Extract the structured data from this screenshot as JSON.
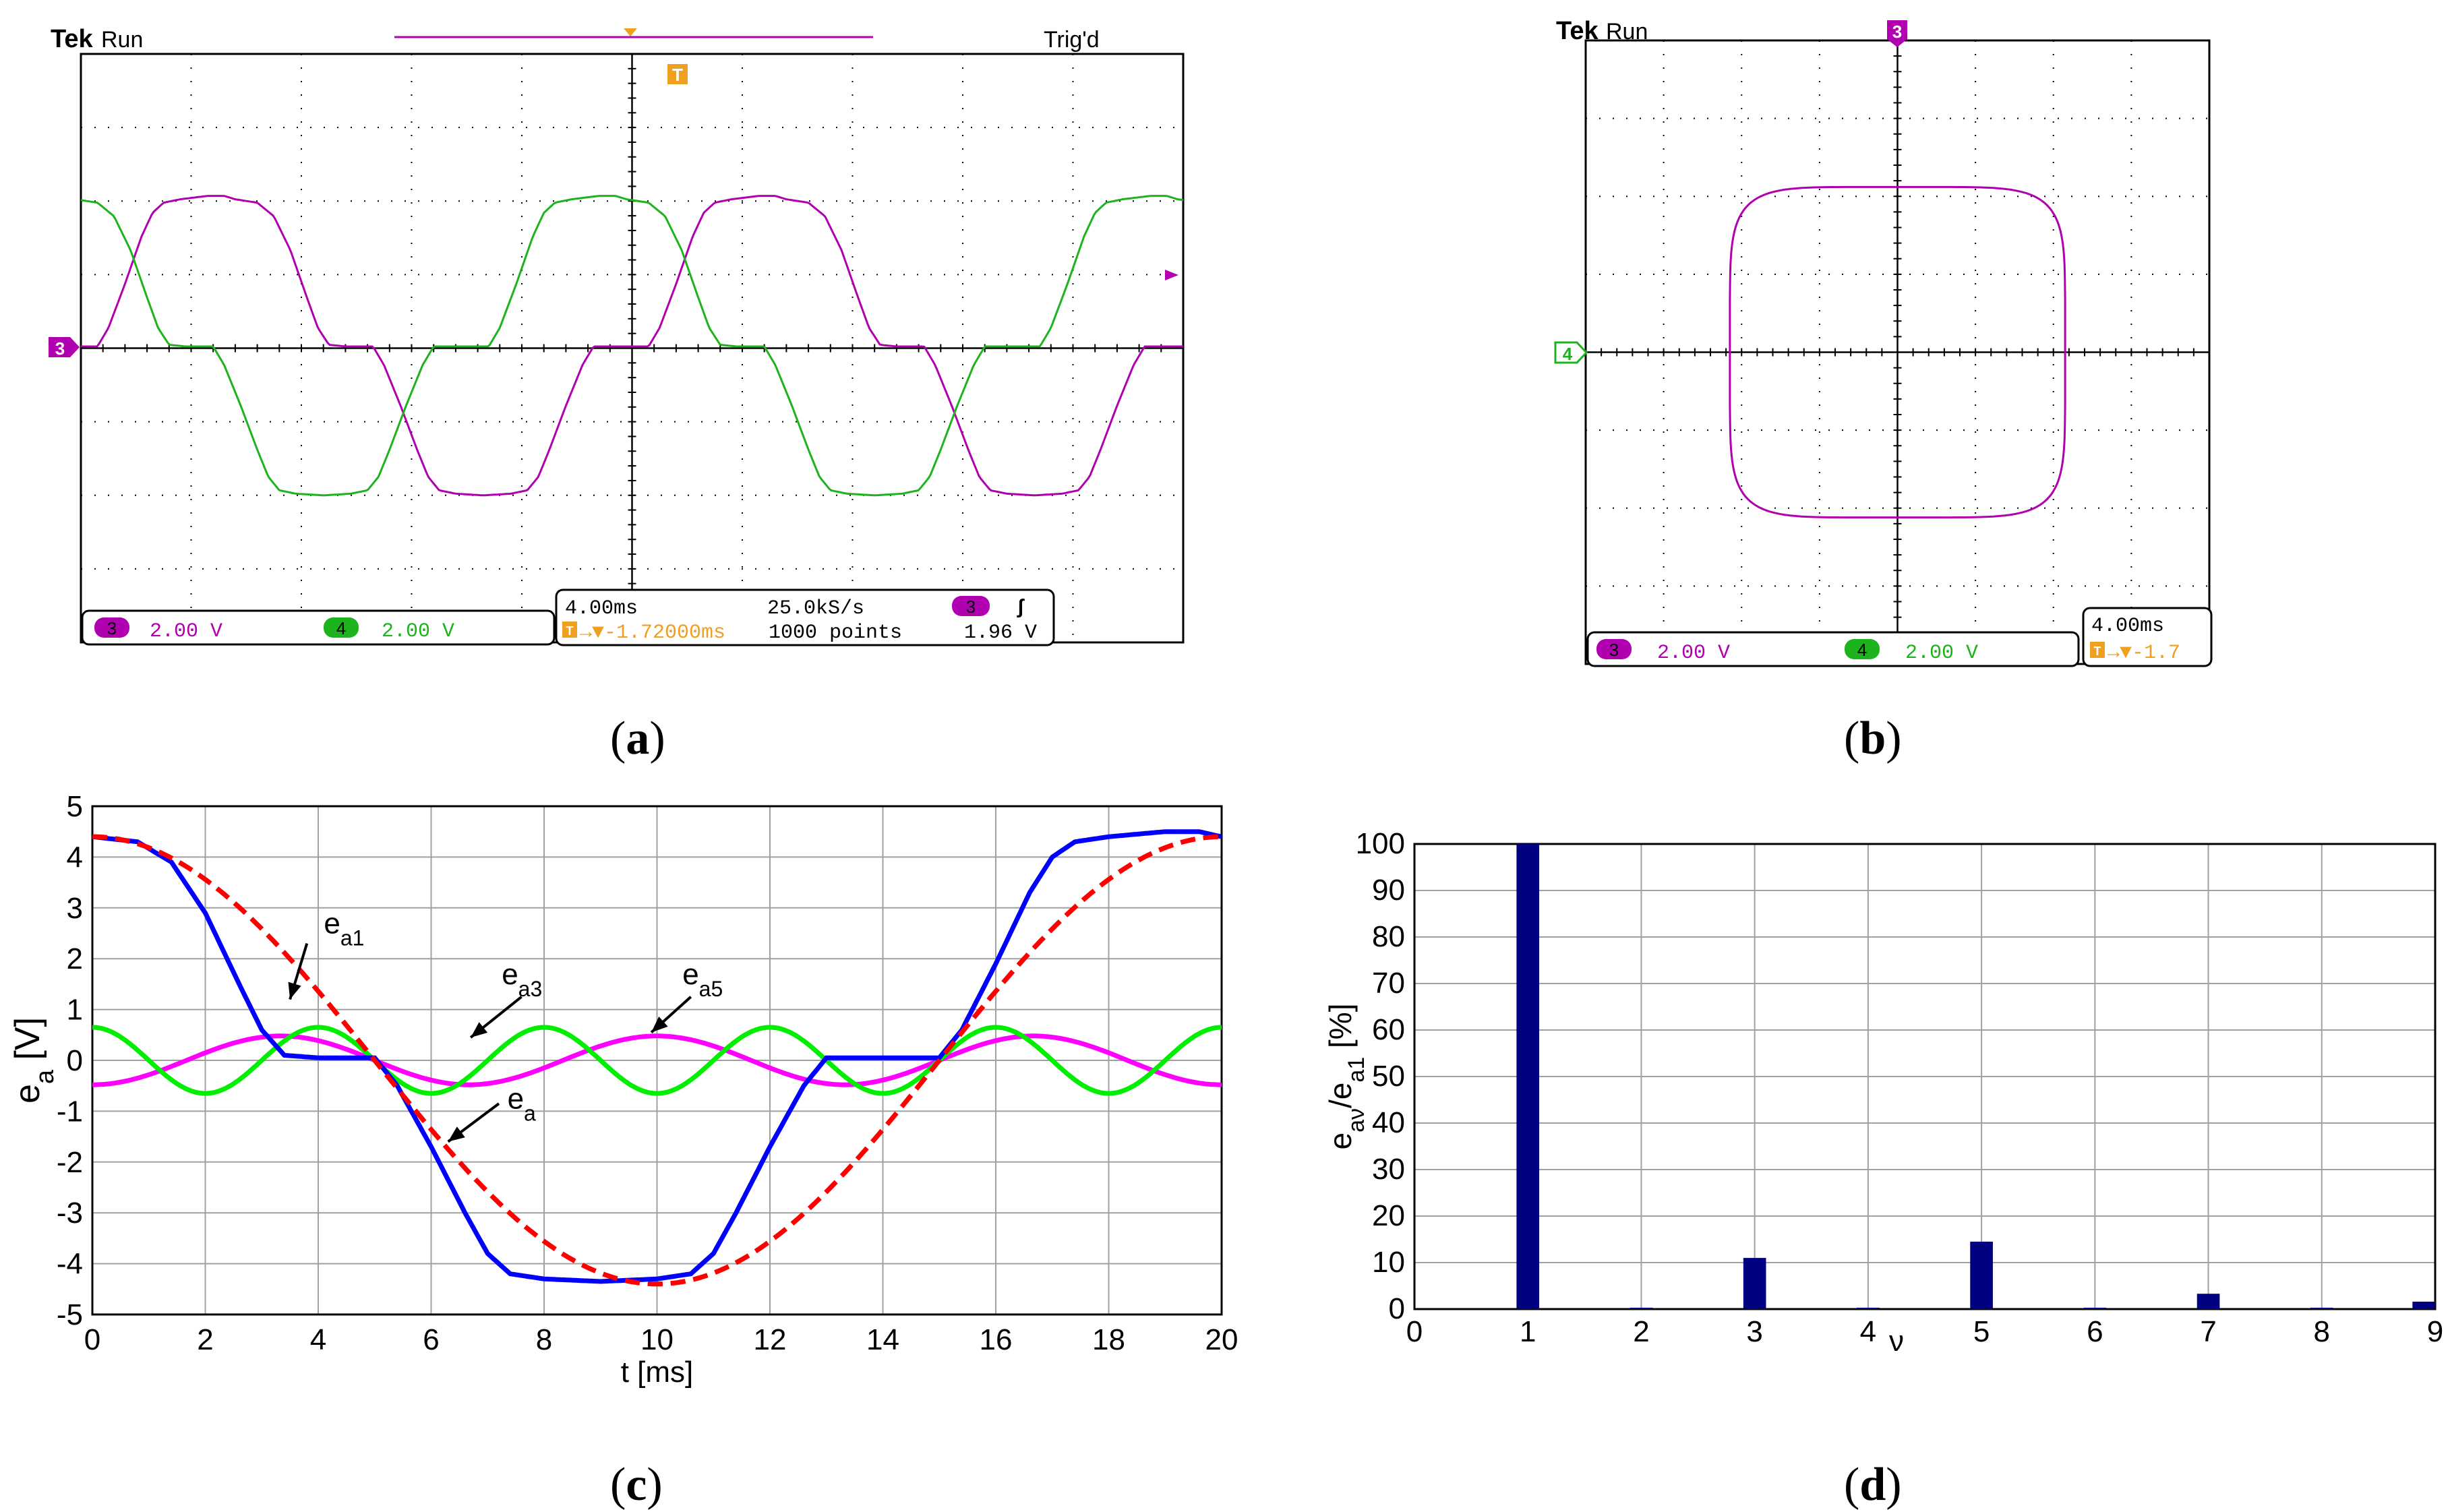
{
  "colors": {
    "ch3": "#b000b0",
    "ch4": "#1db31d",
    "trigger": "#f0a020",
    "ea": "#0000ff",
    "ea1": "#ff0000",
    "ea3": "#ff00ff",
    "ea5": "#00ee00",
    "bars": "#000080",
    "grid": "#a0a0a0"
  },
  "panel_a": {
    "caption": "a",
    "brand": "Tek",
    "run": "Run",
    "status": "Trig'd",
    "ch3_marker": "3",
    "trig_marker": "T",
    "readout": {
      "ch3_badge": "3",
      "ch3_scale": "2.00 V",
      "ch4_badge": "4",
      "ch4_scale": "2.00 V",
      "timebase": "4.00ms",
      "sample_rate": "25.0kS/s",
      "trig_src": "3",
      "trig_slope": "ʃ",
      "trig_pos_icon": "T",
      "trig_pos": "→▼-1.72000ms",
      "points": "1000 points",
      "trig_level": "1.96 V"
    }
  },
  "panel_b": {
    "caption": "b",
    "brand": "Tek",
    "run": "Run",
    "ch3_marker": "3",
    "ch4_marker": "4",
    "readout": {
      "ch3_badge": "3",
      "ch3_scale": "2.00 V",
      "ch4_badge": "4",
      "ch4_scale": "2.00 V",
      "timebase": "4.00ms",
      "trig_pos_icon": "T",
      "trig_pos": "→▼-1.7"
    }
  },
  "panel_c": {
    "caption": "c"
  },
  "panel_d": {
    "caption": "d"
  },
  "chart_data": [
    {
      "id": "c",
      "type": "line",
      "xlabel": "t  [ms]",
      "ylabel": "e_a [V]",
      "xlim": [
        0,
        20
      ],
      "ylim": [
        -5,
        5
      ],
      "xticks": [
        0,
        2,
        4,
        6,
        8,
        10,
        12,
        14,
        16,
        18,
        20
      ],
      "yticks": [
        5,
        4,
        3,
        2,
        1,
        0,
        -1,
        -2,
        -3,
        -4,
        -5
      ],
      "series": [
        {
          "name": "e_a",
          "style": "solid",
          "x": [
            0,
            0.8,
            1.4,
            2.0,
            2.6,
            3.0,
            3.4,
            4.0,
            4.6,
            5.0,
            5.4,
            6.0,
            6.6,
            7.0,
            7.4,
            8.0,
            9.0,
            10.0,
            10.6,
            11.0,
            11.4,
            12.0,
            12.6,
            13.0,
            13.4,
            14.0,
            14.6,
            15.0,
            15.4,
            16.0,
            16.6,
            17.0,
            17.4,
            18.0,
            19.0,
            19.6,
            20.0
          ],
          "y": [
            4.4,
            4.3,
            3.9,
            2.9,
            1.5,
            0.6,
            0.1,
            0.05,
            0.05,
            0.05,
            -0.5,
            -1.7,
            -3.0,
            -3.8,
            -4.2,
            -4.3,
            -4.35,
            -4.3,
            -4.2,
            -3.8,
            -3.0,
            -1.7,
            -0.5,
            0.05,
            0.05,
            0.05,
            0.05,
            0.05,
            0.6,
            1.9,
            3.3,
            4.0,
            4.3,
            4.4,
            4.5,
            4.5,
            4.4
          ]
        },
        {
          "name": "e_a1",
          "style": "dashed",
          "amplitude": 4.4,
          "harmonic": 1,
          "phase_deg": 0,
          "period_ms": 20
        },
        {
          "name": "e_a3",
          "style": "solid",
          "amplitude": 0.48,
          "harmonic": 3,
          "phase_deg": 180,
          "period_ms": 20
        },
        {
          "name": "e_a5",
          "style": "solid",
          "amplitude": 0.65,
          "harmonic": 5,
          "phase_deg": 0,
          "period_ms": 20
        }
      ],
      "annotations": [
        {
          "text": "e_a1",
          "at_x": 3.5,
          "at_y": 1.2
        },
        {
          "text": "e_a3",
          "at_x": 6.7,
          "at_y": 0.45
        },
        {
          "text": "e_a5",
          "at_x": 9.9,
          "at_y": 0.55
        },
        {
          "text": "e_a",
          "at_x": 6.3,
          "at_y": -1.6
        }
      ]
    },
    {
      "id": "d",
      "type": "bar",
      "xlabel": "ν",
      "ylabel": "e_aν/e_a1  [%]",
      "xlim": [
        0,
        9
      ],
      "ylim": [
        0,
        100
      ],
      "xticks": [
        0,
        1,
        2,
        3,
        4,
        5,
        6,
        7,
        8,
        9
      ],
      "yticks": [
        100,
        90,
        80,
        70,
        60,
        50,
        40,
        30,
        20,
        10,
        0
      ],
      "categories": [
        1,
        2,
        3,
        4,
        5,
        6,
        7,
        8,
        9
      ],
      "values": [
        100,
        0.3,
        11,
        0.3,
        14.5,
        0.3,
        3.3,
        0.3,
        1.6
      ]
    }
  ]
}
